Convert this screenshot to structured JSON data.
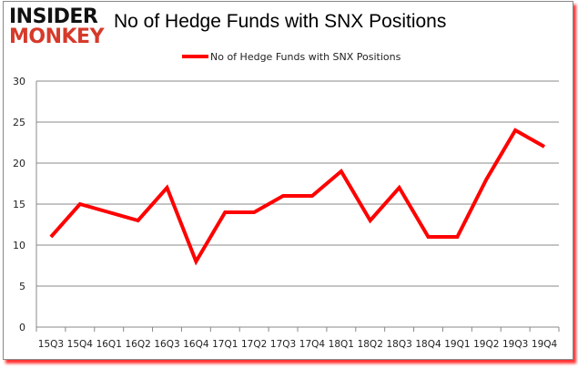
{
  "logo": {
    "line1": "INSIDER",
    "line2": "MONKEY"
  },
  "chart_data": {
    "type": "line",
    "title": "No of Hedge Funds with SNX Positions",
    "categories": [
      "15Q3",
      "15Q4",
      "16Q1",
      "16Q2",
      "16Q3",
      "16Q4",
      "17Q1",
      "17Q2",
      "17Q3",
      "17Q4",
      "18Q1",
      "18Q2",
      "18Q3",
      "18Q4",
      "19Q1",
      "19Q2",
      "19Q3",
      "19Q4"
    ],
    "series": [
      {
        "name": "No of Hedge Funds with SNX Positions",
        "values": [
          11,
          15,
          14,
          13,
          17,
          8,
          14,
          14,
          16,
          16,
          19,
          13,
          17,
          11,
          11,
          18,
          24,
          22
        ],
        "color": "#ff0000"
      }
    ],
    "ylim": [
      0,
      30
    ],
    "yticks": [
      0,
      5,
      10,
      15,
      20,
      25,
      30
    ],
    "grid": true,
    "legend": "top"
  }
}
